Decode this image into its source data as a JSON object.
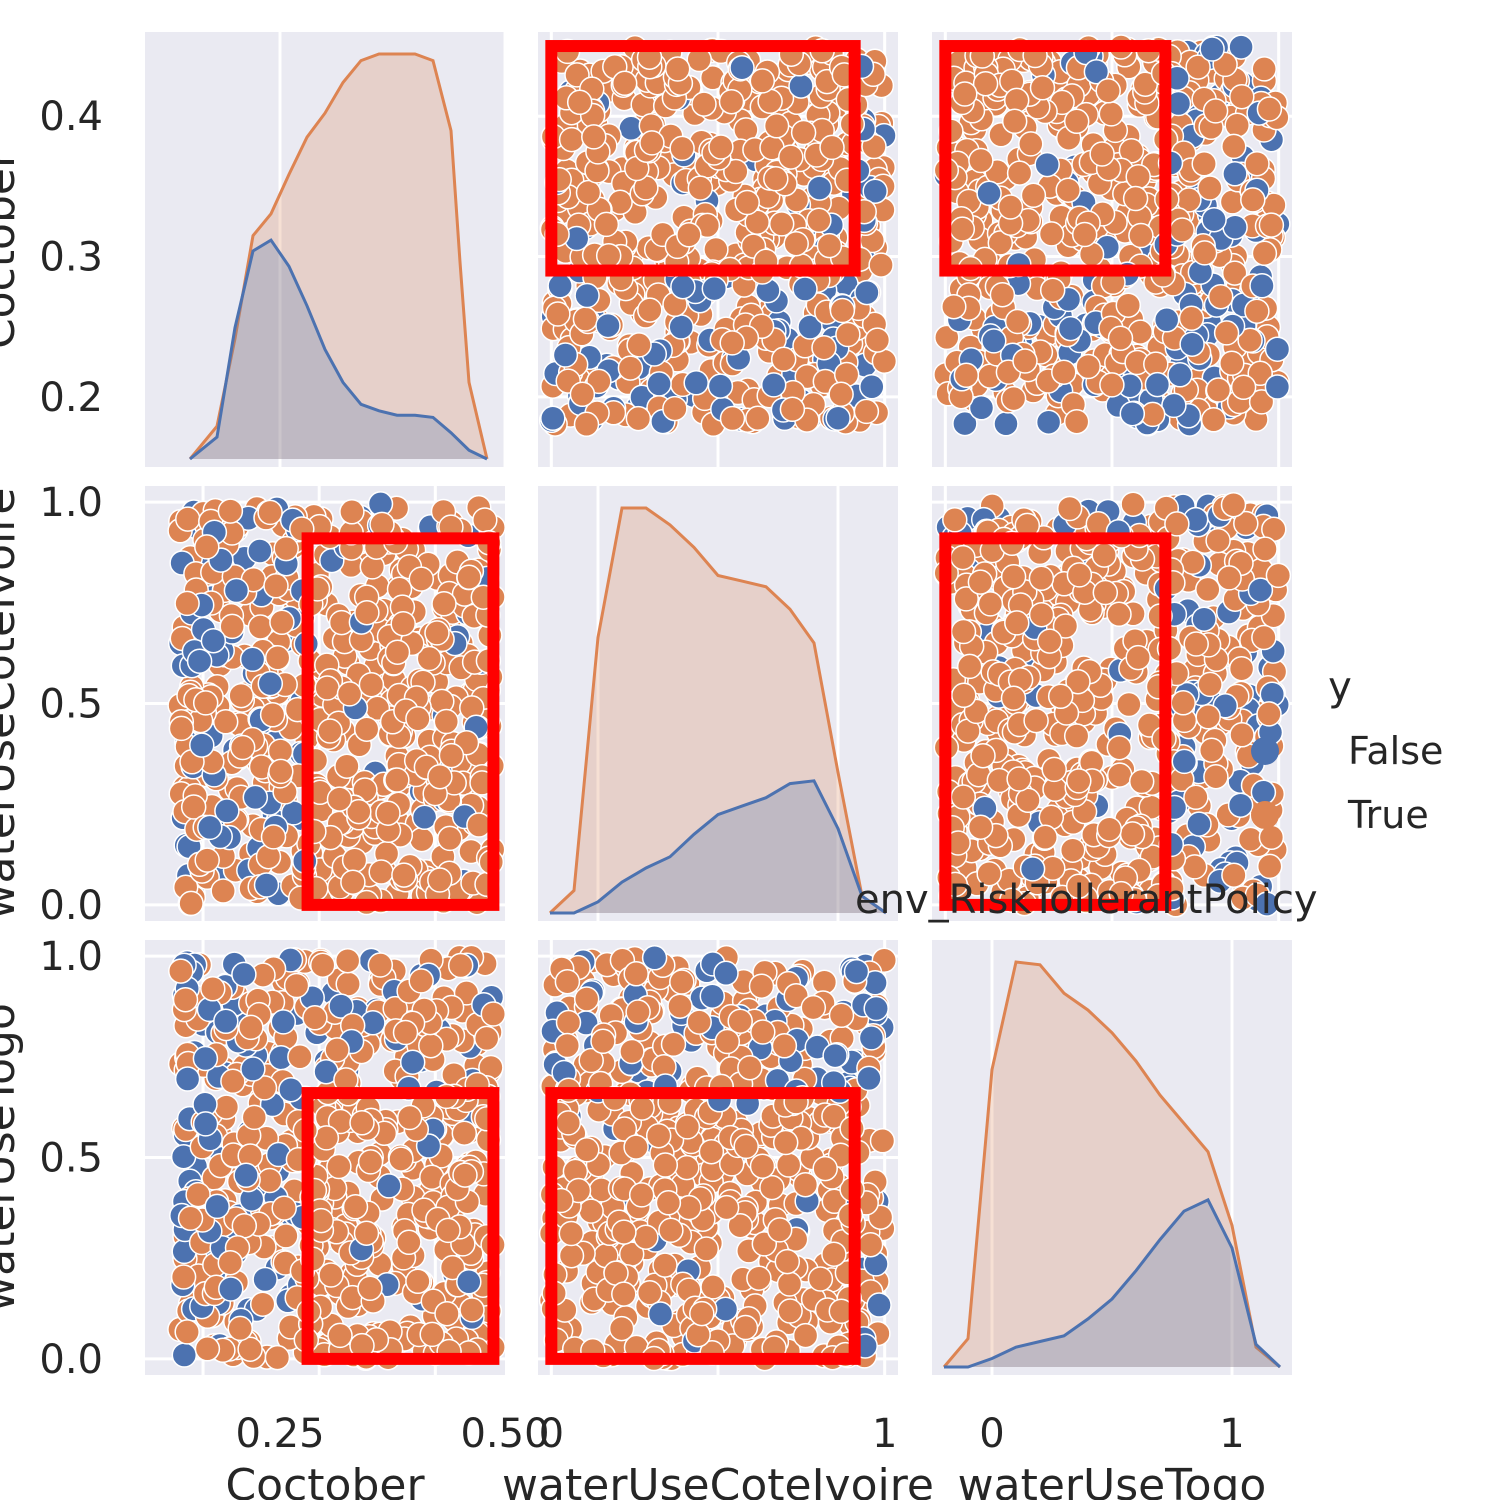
{
  "chart_data": {
    "type": "pairplot",
    "variables": [
      "Coctober",
      "waterUseCoteIvoire",
      "waterUseTogo"
    ],
    "hue": {
      "title": "y",
      "levels": [
        {
          "name": "False",
          "color": "#4c72b0"
        },
        {
          "name": "True",
          "color": "#dd8452"
        }
      ]
    },
    "annotation": "env_RiskTollerantPolicy",
    "background_color": "#eaeaf2",
    "highlight_color": "#ff0000",
    "grid": true,
    "legend_position": "center-right",
    "axes": {
      "Coctober": {
        "label": "Coctober",
        "range": [
          0.15,
          0.46
        ],
        "ticks": [
          0.2,
          0.3,
          0.4
        ],
        "tick_labels": [
          "0.2",
          "0.3",
          "0.4"
        ],
        "kde_range": [
          0.1,
          0.5
        ],
        "kde_ticks": [
          0.25,
          0.5
        ],
        "kde_tick_labels": [
          "0.25",
          "0.50"
        ],
        "data_range": [
          0.18,
          0.45
        ]
      },
      "waterUseCoteIvoire": {
        "label": "waterUseCoteIvoire",
        "range": [
          -0.04,
          1.04
        ],
        "ticks": [
          0,
          0.5,
          1
        ],
        "tick_labels": [
          "0.0",
          "0.5",
          "1.0"
        ],
        "kde_range": [
          -0.25,
          1.25
        ],
        "kde_ticks": [
          0,
          1
        ],
        "kde_tick_labels": [
          "0",
          "1"
        ],
        "data_range": [
          0,
          1
        ]
      },
      "waterUseTogo": {
        "label": "waterUseTogo",
        "range": [
          -0.04,
          1.04
        ],
        "ticks": [
          0,
          0.5,
          1
        ],
        "tick_labels": [
          "0.0",
          "0.5",
          "1.0"
        ],
        "kde_range": [
          -0.25,
          1.25
        ],
        "kde_ticks": [
          0,
          1
        ],
        "kde_tick_labels": [
          "0",
          "1"
        ],
        "data_range": [
          0,
          1
        ]
      }
    },
    "kde_curves": {
      "Coctober": {
        "False": {
          "x": [
            0.15,
            0.18,
            0.2,
            0.22,
            0.24,
            0.26,
            0.28,
            0.3,
            0.32,
            0.34,
            0.36,
            0.38,
            0.4,
            0.42,
            0.44,
            0.46,
            0.48
          ],
          "density": [
            0.0,
            0.1,
            0.6,
            0.95,
            1.0,
            0.88,
            0.7,
            0.5,
            0.35,
            0.25,
            0.22,
            0.2,
            0.2,
            0.19,
            0.12,
            0.04,
            0.0
          ]
        },
        "True": {
          "x": [
            0.15,
            0.18,
            0.2,
            0.22,
            0.24,
            0.26,
            0.28,
            0.3,
            0.32,
            0.34,
            0.36,
            0.38,
            0.4,
            0.42,
            0.44,
            0.45,
            0.46,
            0.48
          ],
          "density": [
            0.0,
            0.15,
            0.55,
            1.02,
            1.12,
            1.3,
            1.47,
            1.58,
            1.72,
            1.82,
            1.85,
            1.85,
            1.85,
            1.82,
            1.5,
            0.9,
            0.35,
            0.0
          ]
        }
      },
      "waterUseCoteIvoire": {
        "False": {
          "x": [
            -0.2,
            -0.1,
            0.0,
            0.1,
            0.2,
            0.3,
            0.4,
            0.5,
            0.6,
            0.7,
            0.8,
            0.9,
            1.0,
            1.1,
            1.2
          ],
          "density": [
            0.0,
            0.0,
            0.04,
            0.11,
            0.16,
            0.2,
            0.28,
            0.35,
            0.38,
            0.41,
            0.46,
            0.47,
            0.3,
            0.06,
            0.0
          ]
        },
        "True": {
          "x": [
            -0.2,
            -0.1,
            0.0,
            0.1,
            0.2,
            0.3,
            0.4,
            0.5,
            0.6,
            0.7,
            0.8,
            0.9,
            1.0,
            1.1,
            1.2
          ],
          "density": [
            0.0,
            0.08,
            0.98,
            1.44,
            1.44,
            1.38,
            1.3,
            1.2,
            1.18,
            1.16,
            1.08,
            0.96,
            0.5,
            0.06,
            0.0
          ]
        }
      },
      "waterUseTogo": {
        "False": {
          "x": [
            -0.2,
            -0.1,
            0.0,
            0.1,
            0.2,
            0.3,
            0.4,
            0.5,
            0.6,
            0.7,
            0.8,
            0.9,
            1.0,
            1.1,
            1.2
          ],
          "density": [
            0.0,
            0.0,
            0.03,
            0.07,
            0.09,
            0.11,
            0.17,
            0.24,
            0.34,
            0.45,
            0.55,
            0.59,
            0.42,
            0.08,
            0.0
          ]
        },
        "True": {
          "x": [
            -0.2,
            -0.1,
            0.0,
            0.1,
            0.2,
            0.3,
            0.4,
            0.5,
            0.6,
            0.7,
            0.8,
            0.9,
            1.0,
            1.1,
            1.2
          ],
          "density": [
            0.0,
            0.1,
            1.05,
            1.43,
            1.42,
            1.32,
            1.26,
            1.18,
            1.08,
            0.96,
            0.86,
            0.76,
            0.5,
            0.07,
            0.0
          ]
        }
      }
    },
    "highlight_boxes": [
      {
        "x_var": "waterUseCoteIvoire",
        "y_var": "Coctober",
        "x": [
          0.0,
          0.91
        ],
        "y": [
          0.29,
          0.45
        ]
      },
      {
        "x_var": "waterUseTogo",
        "y_var": "Coctober",
        "x": [
          0.0,
          0.66
        ],
        "y": [
          0.29,
          0.45
        ]
      },
      {
        "x_var": "Coctober",
        "y_var": "waterUseCoteIvoire",
        "x": [
          0.29,
          0.45
        ],
        "y": [
          0.0,
          0.91
        ]
      },
      {
        "x_var": "waterUseTogo",
        "y_var": "waterUseCoteIvoire",
        "x": [
          0.0,
          0.66
        ],
        "y": [
          0.0,
          0.91
        ]
      },
      {
        "x_var": "Coctober",
        "y_var": "waterUseTogo",
        "x": [
          0.29,
          0.45
        ],
        "y": [
          0.0,
          0.66
        ]
      },
      {
        "x_var": "waterUseCoteIvoire",
        "y_var": "waterUseTogo",
        "x": [
          0.0,
          0.91
        ],
        "y": [
          0.0,
          0.66
        ]
      }
    ]
  }
}
